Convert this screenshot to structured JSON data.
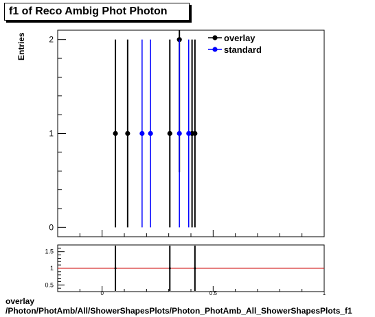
{
  "title": "f1 of Reco Ambig Phot Photon",
  "chart_data": [
    {
      "type": "scatter",
      "ylabel": "Entries",
      "xlim": [
        -0.2,
        1.0
      ],
      "ylim": [
        -0.1,
        2.1
      ],
      "yticks": [
        "0",
        "1",
        "2"
      ],
      "legend": "top-right",
      "series": [
        {
          "name": "overlay",
          "color": "#000000",
          "x": [
            0.06,
            0.115,
            0.305,
            0.348,
            0.405,
            0.418
          ],
          "y": [
            1,
            1,
            1,
            2,
            1,
            1
          ],
          "err": [
            1,
            1,
            1,
            1.414,
            1,
            1
          ]
        },
        {
          "name": "standard",
          "color": "#0000ff",
          "x": [
            0.18,
            0.218,
            0.348,
            0.39
          ],
          "y": [
            1,
            1,
            1,
            1
          ],
          "err": [
            1,
            1,
            1,
            1
          ]
        }
      ]
    },
    {
      "type": "scatter",
      "xlim": [
        -0.2,
        1.0
      ],
      "ylim": [
        0.3,
        1.7
      ],
      "yticks": [
        "0.5",
        "1",
        "1.5"
      ],
      "xticks": [
        "0",
        "0.5",
        "1"
      ],
      "reference_line": {
        "y": 1,
        "color": "#cc0000"
      },
      "x": [
        0.06,
        0.305,
        0.418
      ],
      "y": [
        1,
        1,
        1
      ]
    }
  ],
  "footer": {
    "line1": "overlay",
    "line2": "/Photon/PhotAmb/All/ShowerShapesPlots/Photon_PhotAmb_All_ShowerShapesPlots_f1"
  }
}
